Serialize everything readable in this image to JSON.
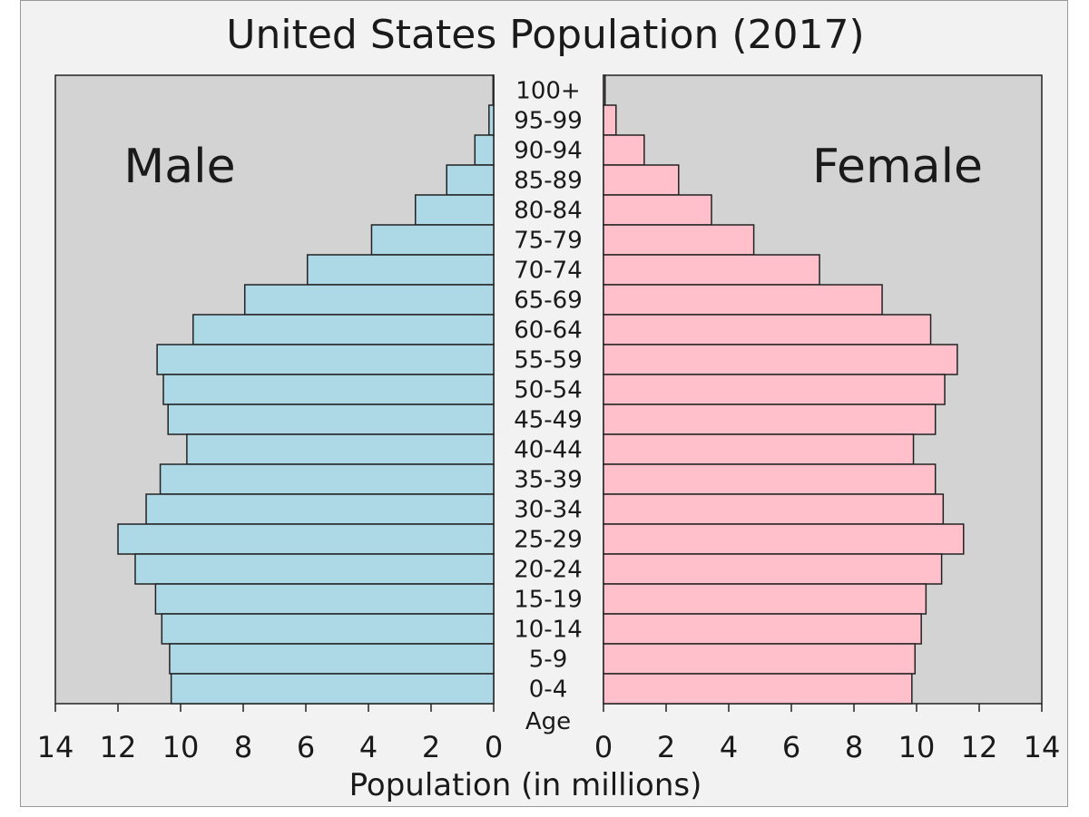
{
  "chart_data": {
    "type": "bar",
    "subtype": "population-pyramid",
    "title": "United States Population (2017)",
    "xlabel": "Population (in millions)",
    "age_axis_label": "Age",
    "xlim": [
      0,
      14
    ],
    "x_ticks": [
      0,
      2,
      4,
      6,
      8,
      10,
      12,
      14
    ],
    "x_tick_labels": [
      "0",
      "2",
      "4",
      "6",
      "8",
      "10",
      "12",
      "14"
    ],
    "grid": false,
    "age_groups": [
      "100+",
      "95-99",
      "90-94",
      "85-89",
      "80-84",
      "75-79",
      "70-74",
      "65-69",
      "60-64",
      "55-59",
      "50-54",
      "45-49",
      "40-44",
      "35-39",
      "30-34",
      "25-29",
      "20-24",
      "15-19",
      "10-14",
      "5-9",
      "0-4"
    ],
    "series": [
      {
        "name": "Male",
        "side": "left",
        "color": "#add8e6",
        "values": [
          0.02,
          0.15,
          0.6,
          1.5,
          2.5,
          3.9,
          5.95,
          7.95,
          9.6,
          10.75,
          10.55,
          10.4,
          9.8,
          10.65,
          11.1,
          12.0,
          11.45,
          10.8,
          10.6,
          10.35,
          10.3
        ]
      },
      {
        "name": "Female",
        "side": "right",
        "color": "#ffc0cb",
        "values": [
          0.05,
          0.4,
          1.3,
          2.4,
          3.45,
          4.8,
          6.9,
          8.9,
          10.45,
          11.3,
          10.9,
          10.6,
          9.9,
          10.6,
          10.85,
          11.5,
          10.8,
          10.3,
          10.15,
          9.95,
          9.85
        ]
      }
    ],
    "panel_background": "#d3d3d3",
    "frame_background": "#f2f2f2"
  }
}
